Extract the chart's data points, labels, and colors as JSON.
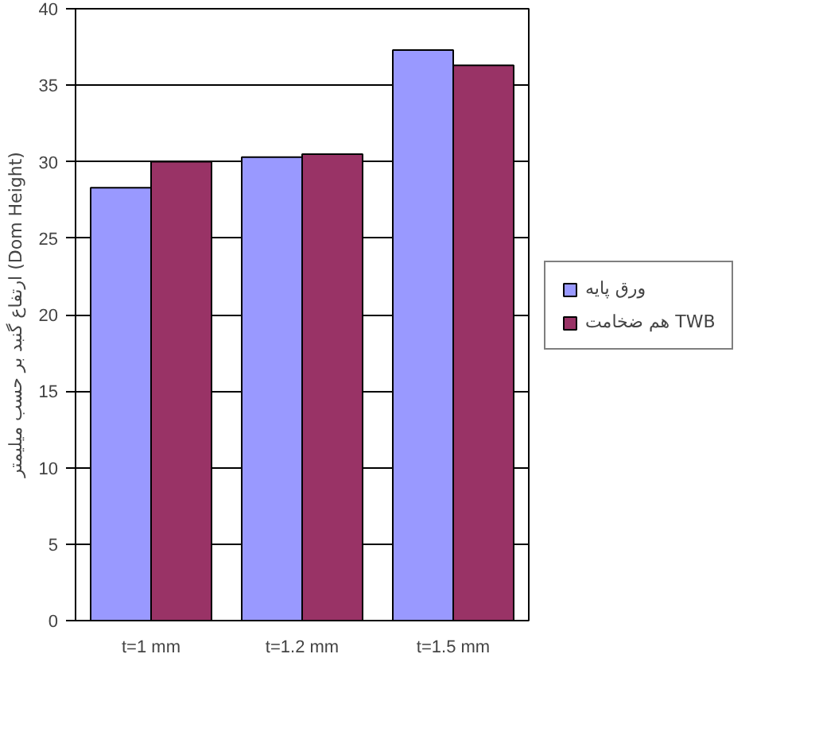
{
  "chart_data": {
    "type": "bar",
    "ylabel": "ارتفاع گنبد بر حسب میلیمتر (Dom Height)",
    "categories": [
      "t=1 mm",
      "t=1.2 mm",
      "t=1.5 mm"
    ],
    "series": [
      {
        "name": "ورق پایه",
        "color": "#9999ff",
        "values": [
          28.3,
          30.3,
          37.3
        ]
      },
      {
        "name": "هم ضخامت TWB",
        "color": "#993366",
        "values": [
          30.0,
          30.5,
          36.3
        ]
      }
    ],
    "ylim": [
      0,
      40
    ],
    "yticks": [
      0,
      5,
      10,
      15,
      20,
      25,
      30,
      35,
      40
    ],
    "grid": "y",
    "legend": "right"
  }
}
